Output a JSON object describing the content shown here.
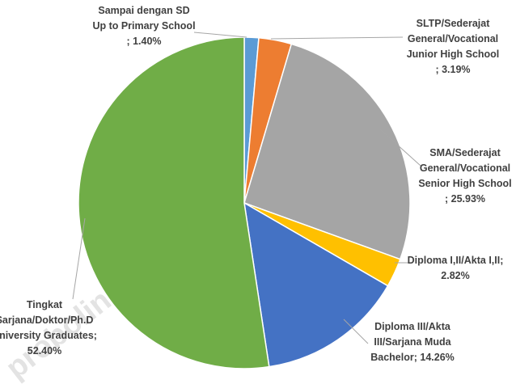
{
  "chart_data": {
    "type": "pie",
    "categories": [
      [
        "Sampai dengan SD",
        "Up to Primary School"
      ],
      [
        "SLTP/Sederajat",
        "General/Vocational",
        "Junior High School"
      ],
      [
        "SMA/Sederajat",
        "General/Vocational",
        "Senior High School"
      ],
      [
        "Diploma I,II/Akta I,II;"
      ],
      [
        "Diploma III/Akta",
        "III/Sarjana Muda",
        "Bachelor"
      ],
      [
        "Tingkat",
        "Sarjana/Doktor/Ph.D",
        "University Graduates;"
      ]
    ],
    "values": [
      1.4,
      3.19,
      25.93,
      2.82,
      14.26,
      52.4
    ],
    "value_labels": [
      "; 1.40%",
      "; 3.19%",
      "; 25.93%",
      "2.82%",
      "; 14.26%",
      "52.40%"
    ],
    "colors": [
      "#5b9bd5",
      "#ed7d31",
      "#a5a5a5",
      "#ffc000",
      "#4472c4",
      "#70ad47"
    ],
    "watermark": "probolinggokota.bps.go.id"
  }
}
